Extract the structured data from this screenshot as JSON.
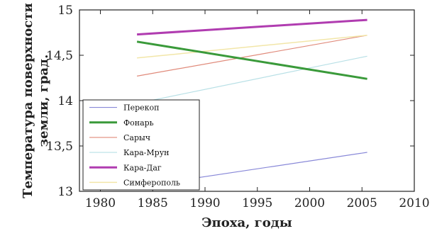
{
  "chart_data": {
    "type": "line",
    "xlabel": "Эпоха, годы",
    "ylabel_lines": [
      "Температура поверхности",
      "земли, град."
    ],
    "xlim": [
      1978,
      2010
    ],
    "ylim": [
      13,
      15
    ],
    "xticks": [
      1980,
      1985,
      1990,
      1995,
      2000,
      2005,
      2010
    ],
    "xtick_labels": [
      "1980",
      "1985",
      "1990",
      "1995",
      "2000",
      "2005",
      "2010"
    ],
    "yticks": [
      13,
      13.5,
      14,
      14.5,
      15
    ],
    "ytick_labels": [
      "13",
      "13,5",
      "14",
      "14,5",
      "15"
    ],
    "grid": false,
    "legend_position": "bottom-left",
    "series": [
      {
        "name": "Перекоп",
        "color": "#8888d8",
        "width": 1.2,
        "x": [
          1983.5,
          2005.5
        ],
        "y": [
          13.05,
          13.43
        ]
      },
      {
        "name": "Фонарь",
        "color": "#3a9a3a",
        "width": 3,
        "x": [
          1983.5,
          2005.5
        ],
        "y": [
          14.65,
          14.24
        ]
      },
      {
        "name": "Сарыч",
        "color": "#e08a7a",
        "width": 1.2,
        "x": [
          1983.5,
          2005.5
        ],
        "y": [
          14.27,
          14.72
        ]
      },
      {
        "name": "Кара-Мрун",
        "color": "#b8e0e6",
        "width": 1.2,
        "x": [
          1983.5,
          2005.5
        ],
        "y": [
          13.97,
          14.49
        ]
      },
      {
        "name": "Кара-Даг",
        "color": "#b03cb0",
        "width": 3,
        "x": [
          1983.5,
          2005.5
        ],
        "y": [
          14.73,
          14.89
        ]
      },
      {
        "name": "Симферополь",
        "color": "#f2e6a8",
        "width": 1.5,
        "x": [
          1983.5,
          2005.5
        ],
        "y": [
          14.47,
          14.72
        ]
      }
    ]
  }
}
